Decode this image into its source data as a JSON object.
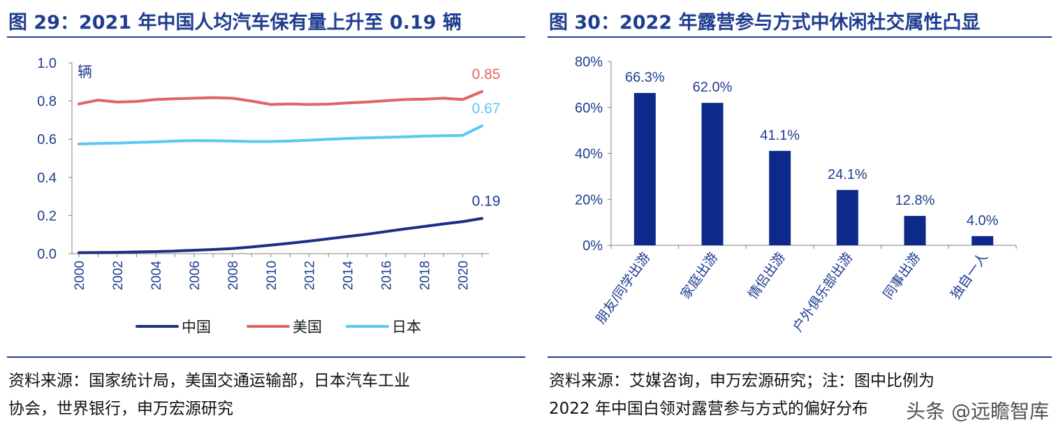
{
  "left": {
    "title": "图 29：2021 年中国人均汽车保有量上升至 0.19 辆",
    "source_line1": "资料来源：国家统计局，美国交通运输部，日本汽车工业",
    "source_line2": "协会，世界银行，申万宏源研究"
  },
  "right": {
    "title": "图 30：2022 年露营参与方式中休闲社交属性凸显",
    "source_line1": "资料来源：艾媒咨询，申万宏源研究；注：图中比例为",
    "source_line2": "2022 年中国白领对露营参与方式的偏好分布"
  },
  "watermark": "头条 @远瞻智库",
  "colors": {
    "china": "#1b2f86",
    "usa": "#e06666",
    "japan": "#5bc8f2",
    "bar": "#0d2a8a",
    "title": "#1f3d8f"
  },
  "chart_data": [
    {
      "type": "line",
      "unit_label": "辆",
      "x": [
        2000,
        2001,
        2002,
        2003,
        2004,
        2005,
        2006,
        2007,
        2008,
        2009,
        2010,
        2011,
        2012,
        2013,
        2014,
        2015,
        2016,
        2017,
        2018,
        2019,
        2020,
        2021
      ],
      "x_ticks": [
        "2000",
        "2002",
        "2004",
        "2006",
        "2008",
        "2010",
        "2012",
        "2014",
        "2016",
        "2018",
        "2020"
      ],
      "ylim": [
        0,
        1.0
      ],
      "y_ticks": [
        "0.0",
        "0.2",
        "0.4",
        "0.6",
        "0.8",
        "1.0"
      ],
      "series": [
        {
          "name": "中国",
          "color": "#1b2f86",
          "end_label": "0.19",
          "values": [
            0.005,
            0.006,
            0.007,
            0.009,
            0.011,
            0.014,
            0.018,
            0.022,
            0.027,
            0.035,
            0.045,
            0.055,
            0.066,
            0.078,
            0.09,
            0.102,
            0.116,
            0.13,
            0.143,
            0.156,
            0.168,
            0.185
          ]
        },
        {
          "name": "美国",
          "color": "#e06666",
          "end_label": "0.85",
          "values": [
            0.785,
            0.805,
            0.795,
            0.798,
            0.808,
            0.812,
            0.815,
            0.818,
            0.815,
            0.8,
            0.782,
            0.785,
            0.782,
            0.784,
            0.79,
            0.795,
            0.802,
            0.808,
            0.81,
            0.815,
            0.808,
            0.85
          ]
        },
        {
          "name": "日本",
          "color": "#5bc8f2",
          "end_label": "0.67",
          "values": [
            0.575,
            0.578,
            0.58,
            0.583,
            0.586,
            0.59,
            0.593,
            0.592,
            0.59,
            0.588,
            0.588,
            0.591,
            0.595,
            0.6,
            0.604,
            0.607,
            0.61,
            0.613,
            0.616,
            0.618,
            0.62,
            0.67
          ]
        }
      ],
      "legend": [
        "中国",
        "美国",
        "日本"
      ],
      "legend_position": "bottom"
    },
    {
      "type": "bar",
      "categories": [
        "朋友/同学出游",
        "家庭出游",
        "情侣出游",
        "户外俱乐部出游",
        "同事出游",
        "独自一人"
      ],
      "values": [
        66.3,
        62.0,
        41.1,
        24.1,
        12.8,
        4.0
      ],
      "value_labels": [
        "66.3%",
        "62.0%",
        "41.1%",
        "24.1%",
        "12.8%",
        "4.0%"
      ],
      "ylim": [
        0,
        80
      ],
      "y_ticks": [
        "0%",
        "20%",
        "40%",
        "60%",
        "80%"
      ]
    }
  ]
}
